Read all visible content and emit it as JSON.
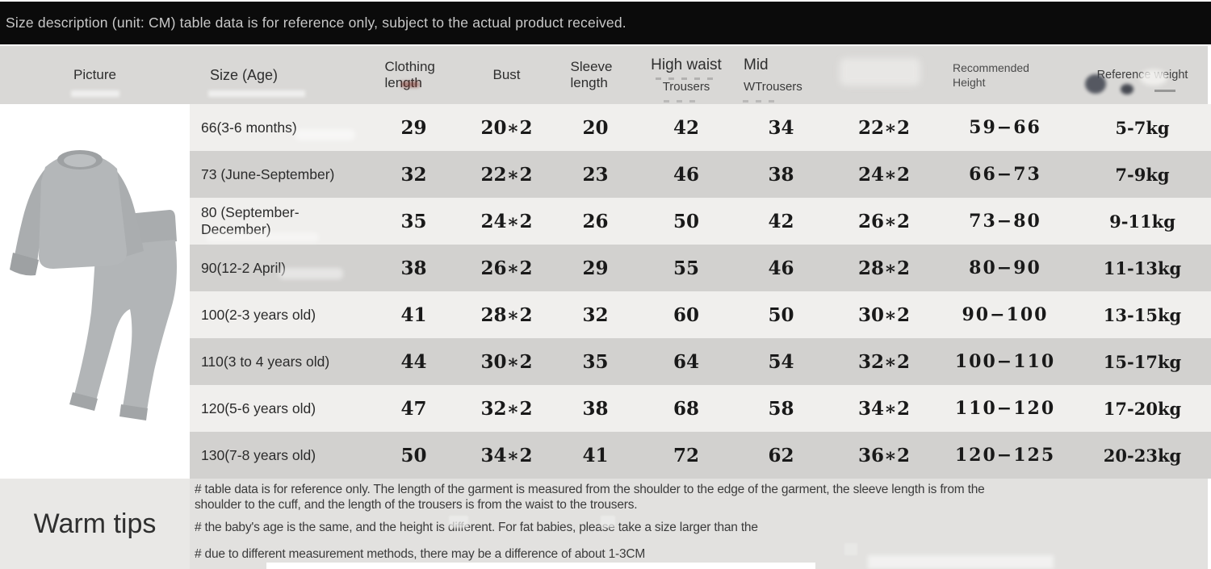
{
  "banner": {
    "text": "Size description (unit: CM) table data is for reference only, subject to the actual product received."
  },
  "table": {
    "headers": {
      "picture": "Picture",
      "size_age": "Size (Age)",
      "clothing_length": "Clothing length",
      "bust": "Bust",
      "sleeve_length": "Sleeve length",
      "high_waist_top": "High waist",
      "high_waist_sub": "Trousers",
      "mid_top": "Mid",
      "mid_sub": "WTrousers",
      "trousers_extra": "",
      "recommended_height_line1": "Recommended",
      "recommended_height_line2": "Height",
      "reference_weight": "Reference weight"
    },
    "rows": [
      {
        "size": "66(3-6 months)",
        "clothing_length": "29",
        "bust": "20*2",
        "sleeve_length": "20",
        "high_waist_trousers": "42",
        "mid_waist_trousers": "34",
        "trousers_extra": "22*2",
        "recommended_height": "59−66",
        "reference_weight": "5-7kg"
      },
      {
        "size": "73 (June-September)",
        "clothing_length": "32",
        "bust": "22*2",
        "sleeve_length": "23",
        "high_waist_trousers": "46",
        "mid_waist_trousers": "38",
        "trousers_extra": "24*2",
        "recommended_height": "66−73",
        "reference_weight": "7-9kg"
      },
      {
        "size": "80 (September-December)",
        "clothing_length": "35",
        "bust": "24*2",
        "sleeve_length": "26",
        "high_waist_trousers": "50",
        "mid_waist_trousers": "42",
        "trousers_extra": "26*2",
        "recommended_height": "73−80",
        "reference_weight": "9-11kg"
      },
      {
        "size": "90(12-2 April)",
        "clothing_length": "38",
        "bust": "26*2",
        "sleeve_length": "29",
        "high_waist_trousers": "55",
        "mid_waist_trousers": "46",
        "trousers_extra": "28*2",
        "recommended_height": "80−90",
        "reference_weight": "11-13kg"
      },
      {
        "size": "100(2-3 years old)",
        "clothing_length": "41",
        "bust": "28*2",
        "sleeve_length": "32",
        "high_waist_trousers": "60",
        "mid_waist_trousers": "50",
        "trousers_extra": "30*2",
        "recommended_height": "90−100",
        "reference_weight": "13-15kg"
      },
      {
        "size": "110(3 to 4 years old)",
        "clothing_length": "44",
        "bust": "30*2",
        "sleeve_length": "35",
        "high_waist_trousers": "64",
        "mid_waist_trousers": "54",
        "trousers_extra": "32*2",
        "recommended_height": "100−110",
        "reference_weight": "15-17kg"
      },
      {
        "size": "120(5-6 years old)",
        "clothing_length": "47",
        "bust": "32*2",
        "sleeve_length": "38",
        "high_waist_trousers": "68",
        "mid_waist_trousers": "58",
        "trousers_extra": "34*2",
        "recommended_height": "110−120",
        "reference_weight": "17-20kg"
      },
      {
        "size": "130(7-8 years old)",
        "clothing_length": "50",
        "bust": "34*2",
        "sleeve_length": "41",
        "high_waist_trousers": "72",
        "mid_waist_trousers": "62",
        "trousers_extra": "36*2",
        "recommended_height": "120−125",
        "reference_weight": "20-23kg"
      }
    ]
  },
  "product_image": {
    "icon": "baby-clothing-set-photo",
    "description": "grey long-sleeve sweatshirt and high-waist trousers set"
  },
  "warm_tips": {
    "label": "Warm tips",
    "notes": [
      "# table data is for reference only. The length of the garment is measured from the shoulder to the edge of the garment, the sleeve length is from the shoulder to the cuff, and the length of the trousers is from the waist to the trousers.",
      "# the baby's age is the same, and the height is different. For fat babies, please take a size larger than the",
      "# due to different measurement methods, there may be a difference of about 1-3CM"
    ]
  },
  "colors": {
    "banner_bg": "#0b0b0b",
    "banner_text": "#c9c9c9",
    "header_bg": "#d9d8d6",
    "row_light": "#f0efed",
    "row_dark": "#d2d1cf",
    "tips_left_bg": "#e9e8e6",
    "tips_right_bg": "#e2e1df",
    "garment_grey": "#b2b5b7"
  }
}
